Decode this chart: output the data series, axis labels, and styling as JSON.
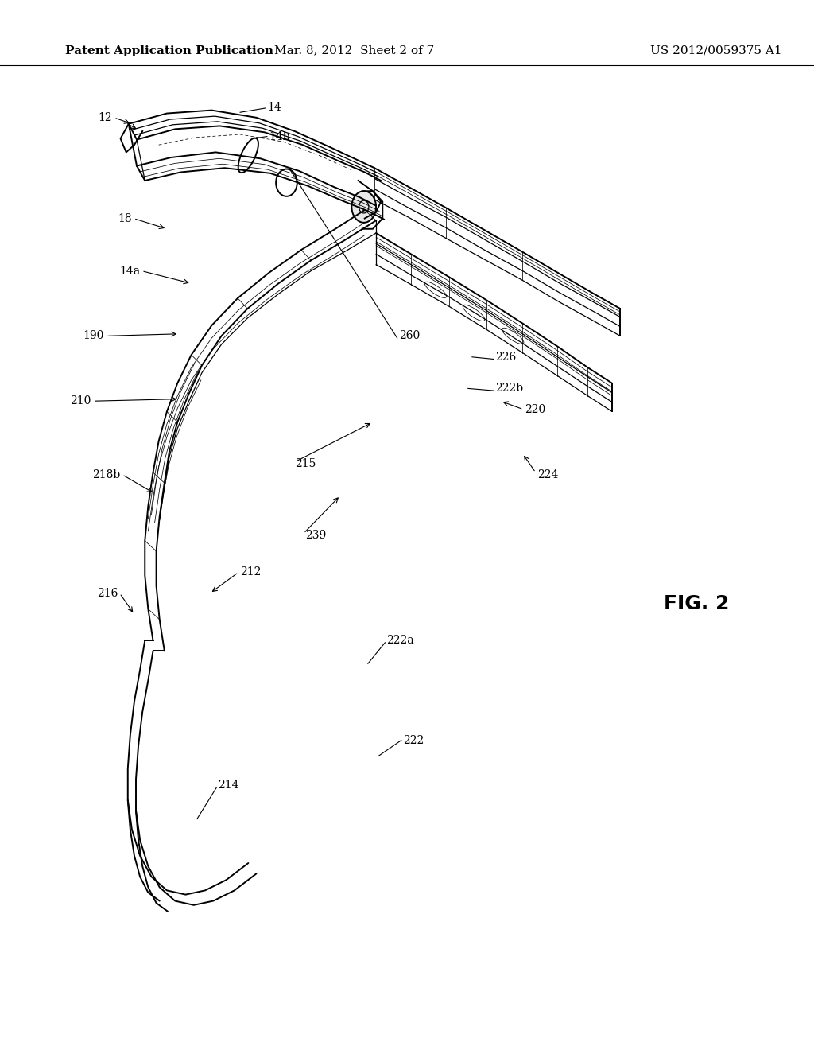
{
  "background_color": "#ffffff",
  "header_left": "Patent Application Publication",
  "header_center": "Mar. 8, 2012  Sheet 2 of 7",
  "header_right": "US 2012/0059375 A1",
  "fig_label": "FIG. 2",
  "header_fontsize": 11,
  "fig_label_fontsize": 18,
  "label_fontsize": 10
}
